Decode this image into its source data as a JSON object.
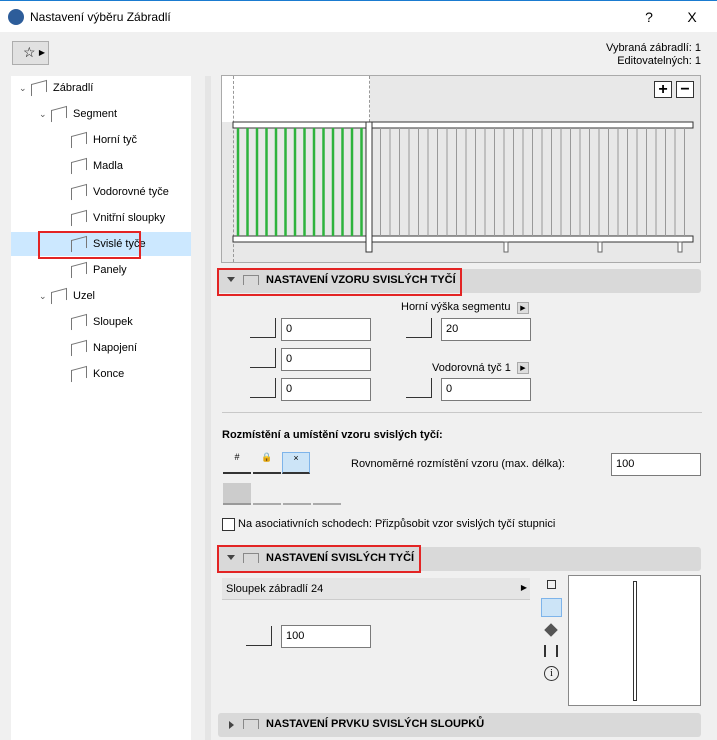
{
  "window": {
    "title": "Nastavení výběru Zábradlí",
    "help": "?",
    "close": "X"
  },
  "selection": {
    "selected": "Vybraná zábradlí: 1",
    "editable": "Editovatelných: 1"
  },
  "tree": [
    {
      "label": "Zábradlí",
      "level": 0,
      "expanded": true
    },
    {
      "label": "Segment",
      "level": 1,
      "expanded": true
    },
    {
      "label": "Horní tyč",
      "level": 2
    },
    {
      "label": "Madla",
      "level": 2
    },
    {
      "label": "Vodorovné tyče",
      "level": 2
    },
    {
      "label": "Vnitřní sloupky",
      "level": 2
    },
    {
      "label": "Svislé tyče",
      "level": 2,
      "selected": true
    },
    {
      "label": "Panely",
      "level": 2
    },
    {
      "label": "Uzel",
      "level": 1,
      "expanded": true
    },
    {
      "label": "Sloupek",
      "level": 2
    },
    {
      "label": "Napojení",
      "level": 2
    },
    {
      "label": "Konce",
      "level": 2
    }
  ],
  "preview": {
    "zoom_in": "+",
    "zoom_out": "−",
    "highlight_color": "#2eb33d"
  },
  "pattern_section": {
    "title": "NASTAVENÍ VZORU SVISLÝCH TYČÍ",
    "offset_start": "0",
    "offset_left": "0",
    "offset_right": "0",
    "top_label": "Horní výška segmentu",
    "top_value": "20",
    "rail_label": "Vodorovná tyč 1",
    "rail_value": "0",
    "distribution_label": "Rozmístění a umístění vzoru svislých tyčí:",
    "distribution_icons": [
      "#",
      "🔒",
      "×"
    ],
    "even_label": "Rovnoměrné rozmístění vzoru (max. délka):",
    "even_value": "100",
    "stairs_checkbox": "Na asociativních schodech: Přizpůsobit vzor svislých tyčí stupnici",
    "stairs_checked": false
  },
  "baluster_section": {
    "title": "NASTAVENÍ SVISLÝCH TYČÍ",
    "object": "Sloupek zábradlí 24",
    "offset_value": "100"
  },
  "post_section": {
    "title": "NASTAVENÍ PRVKU SVISLÝCH SLOUPKŮ"
  }
}
